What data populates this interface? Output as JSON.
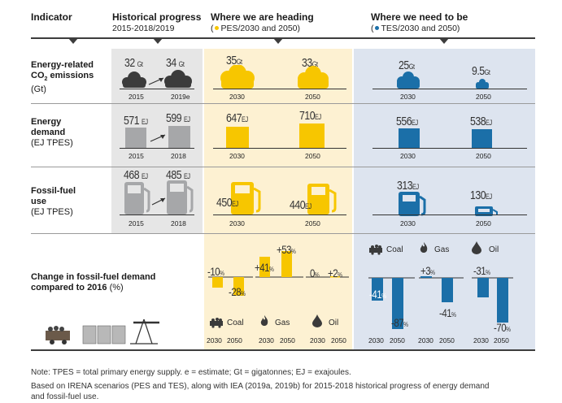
{
  "colors": {
    "grey": "#a6a7a9",
    "dark": "#3b3b3b",
    "yellow": "#f7c600",
    "blue": "#1b6fa8",
    "pes_bg": "#fdf1d2",
    "tes_bg": "#dde4ef",
    "hist_bg": "#e6e6e6"
  },
  "header": {
    "indicator": "Indicator",
    "historical": "Historical progress",
    "historical_sub": "2015-2018/2019",
    "heading": "Where we are heading",
    "heading_sub": "PES/2030 and 2050)",
    "heading_sub_prefix": "(",
    "need": "Where we need to be",
    "need_sub": "TES/2030 and 2050)",
    "need_sub_prefix": "("
  },
  "rows": {
    "co2": {
      "label1": "Energy-related",
      "label2": "CO",
      "label2_sub": "2",
      "label2_rest": " emissions",
      "label3": "(Gt)",
      "hist": [
        {
          "value": "32",
          "unit": "Gt",
          "year": "2015"
        },
        {
          "value": "34",
          "unit": "Gt",
          "year": "2019e"
        }
      ],
      "pes": [
        {
          "value": "35",
          "unit": "Gt",
          "year": "2030"
        },
        {
          "value": "33",
          "unit": "Gt",
          "year": "2050"
        }
      ],
      "tes": [
        {
          "value": "25",
          "unit": "Gt",
          "year": "2030"
        },
        {
          "value": "9.5",
          "unit": "Gt",
          "year": "2050"
        }
      ]
    },
    "demand": {
      "label1": "Energy",
      "label2": "demand",
      "label3": "(EJ TPES)",
      "hist": [
        {
          "value": "571",
          "unit": "EJ",
          "year": "2015"
        },
        {
          "value": "599",
          "unit": "EJ",
          "year": "2018"
        }
      ],
      "pes": [
        {
          "value": "647",
          "unit": "EJ",
          "year": "2030"
        },
        {
          "value": "710",
          "unit": "EJ",
          "year": "2050"
        }
      ],
      "tes": [
        {
          "value": "556",
          "unit": "EJ",
          "year": "2030"
        },
        {
          "value": "538",
          "unit": "EJ",
          "year": "2050"
        }
      ]
    },
    "fossil": {
      "label1": "Fossil-fuel",
      "label2": "use",
      "label3": "(EJ TPES)",
      "hist": [
        {
          "value": "468",
          "unit": "EJ",
          "year": "2015"
        },
        {
          "value": "485",
          "unit": "EJ",
          "year": "2018"
        }
      ],
      "pes": [
        {
          "value": "450",
          "unit": "EJ",
          "year": "2030"
        },
        {
          "value": "440",
          "unit": "EJ",
          "year": "2050"
        }
      ],
      "tes": [
        {
          "value": "313",
          "unit": "EJ",
          "year": "2030"
        },
        {
          "value": "130",
          "unit": "EJ",
          "year": "2050"
        }
      ]
    },
    "change": {
      "label1": "Change in fossil-fuel demand",
      "label2": "compared to 2016",
      "label2_rest": " (%)",
      "pes": {
        "coal": {
          "name": "Coal",
          "v2030": "-10",
          "v2050": "-28"
        },
        "gas": {
          "name": "Gas",
          "v2030": "+41",
          "v2050": "+53"
        },
        "oil": {
          "name": "Oil",
          "v2030": "0",
          "v2050": "+2"
        }
      },
      "tes": {
        "coal": {
          "name": "Coal",
          "v2030": "-41",
          "v2050": "-87"
        },
        "gas": {
          "name": "Gas",
          "v2030": "+3",
          "v2050": "-41"
        },
        "oil": {
          "name": "Oil",
          "v2030": "-31",
          "v2050": "-70"
        }
      },
      "pct": "%",
      "y2030": "2030",
      "y2050": "2050"
    }
  },
  "notes": {
    "line1": "Note: TPES = total primary energy supply. e = estimate; Gt = gigatonnes; EJ = exajoules.",
    "line2": "Based on IRENA scenarios (PES and TES), along with IEA (2019a, 2019b) for 2015-2018 historical progress of energy demand",
    "line3": "and fossil-fuel use."
  }
}
